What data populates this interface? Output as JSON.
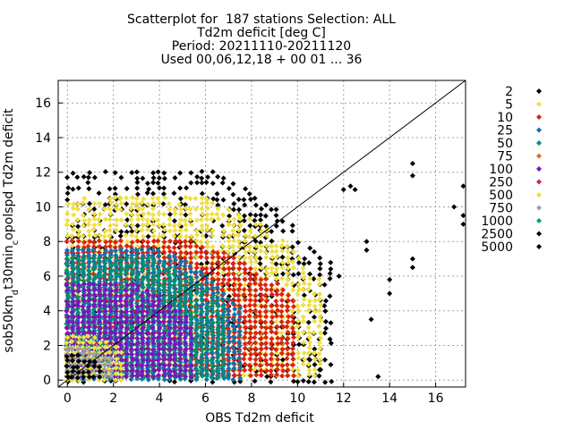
{
  "chart_data": {
    "type": "scatter",
    "title_lines": [
      "Scatterplot for  187 stations Selection: ALL",
      "Td2m deficit [deg C]",
      "Period: 20211110-20211120",
      "Used 00,06,12,18 + 00 01 ... 36"
    ],
    "xlabel": "OBS Td2m deficit",
    "ylabel": "sob50km_d t30min_c opolspd Td2m deficit",
    "ylabel_parts": [
      {
        "text": "sob50km",
        "shift": "none"
      },
      {
        "text": "d",
        "shift": "sub"
      },
      {
        "text": "t30min",
        "shift": "none"
      },
      {
        "text": "c",
        "shift": "sub"
      },
      {
        "text": "opolspd Td2m deficit",
        "shift": "none"
      }
    ],
    "xlim": [
      -0.4,
      17.3
    ],
    "ylim": [
      -0.4,
      17.3
    ],
    "xticks": [
      0,
      2,
      4,
      6,
      8,
      10,
      12,
      14,
      16
    ],
    "yticks": [
      0,
      2,
      4,
      6,
      8,
      10,
      12,
      14,
      16
    ],
    "grid": true,
    "diagonal": true,
    "legend_position": "right",
    "legend": [
      {
        "label": "2",
        "color": "#000000"
      },
      {
        "label": "5",
        "color": "#f0e040"
      },
      {
        "label": "10",
        "color": "#e02010"
      },
      {
        "label": "25",
        "color": "#1070b0"
      },
      {
        "label": "50",
        "color": "#009070"
      },
      {
        "label": "75",
        "color": "#e07020"
      },
      {
        "label": "100",
        "color": "#8010c0"
      },
      {
        "label": "250",
        "color": "#d02060"
      },
      {
        "label": "500",
        "color": "#f0e040"
      },
      {
        "label": "750",
        "color": "#a0a0a0"
      },
      {
        "label": "1000",
        "color": "#00a080"
      },
      {
        "label": "2500",
        "color": "#000000"
      },
      {
        "label": "5000",
        "color": "#000000"
      }
    ],
    "density_layers": [
      {
        "label": "2",
        "color": "#000000",
        "x_range": [
          0,
          11.5
        ],
        "y_range": [
          -0.2,
          12.0
        ]
      },
      {
        "label": "5",
        "color": "#f0e040",
        "x_range": [
          0,
          11.0
        ],
        "y_range": [
          0,
          10.5
        ]
      },
      {
        "label": "10",
        "color": "#e02010",
        "x_range": [
          0,
          10.0
        ],
        "y_range": [
          0,
          8.0
        ]
      },
      {
        "label": "25",
        "color": "#1070b0",
        "x_range": [
          0,
          7.5
        ],
        "y_range": [
          0,
          7.5
        ]
      },
      {
        "label": "50",
        "color": "#009070",
        "x_range": [
          0,
          7.0
        ],
        "y_range": [
          0,
          7.0
        ]
      },
      {
        "label": "100",
        "color": "#8010c0",
        "x_range": [
          0,
          5.5
        ],
        "y_range": [
          0,
          5.5
        ]
      },
      {
        "label": "500",
        "color": "#f0e040",
        "x_range": [
          0,
          2.5
        ],
        "y_range": [
          0,
          2.5
        ]
      },
      {
        "label": "750",
        "color": "#a0a0a0",
        "x_range": [
          0,
          2.0
        ],
        "y_range": [
          0,
          1.8
        ]
      },
      {
        "label": "2500",
        "color": "#000000",
        "x_range": [
          0,
          1.5
        ],
        "y_range": [
          0,
          1.4
        ]
      }
    ],
    "outliers": [
      {
        "x": 15.0,
        "y": 12.5
      },
      {
        "x": 15.0,
        "y": 11.8
      },
      {
        "x": 17.2,
        "y": 11.2
      },
      {
        "x": 17.2,
        "y": 9.0
      },
      {
        "x": 17.2,
        "y": 9.5
      },
      {
        "x": 15.0,
        "y": 7.0
      },
      {
        "x": 15.0,
        "y": 6.5
      },
      {
        "x": 14.0,
        "y": 5.8
      },
      {
        "x": 13.5,
        "y": 0.2
      },
      {
        "x": 12.3,
        "y": 11.2
      },
      {
        "x": 12.0,
        "y": 11.0
      },
      {
        "x": 13.0,
        "y": 8.0
      },
      {
        "x": 13.0,
        "y": 7.5
      },
      {
        "x": 14.0,
        "y": 5.0
      },
      {
        "x": 11.0,
        "y": 0.6
      },
      {
        "x": 12.5,
        "y": 11.0
      },
      {
        "x": 10.5,
        "y": 1.2
      },
      {
        "x": 11.8,
        "y": 6.0
      },
      {
        "x": 16.8,
        "y": 10.0
      },
      {
        "x": 13.2,
        "y": 3.5
      }
    ]
  }
}
